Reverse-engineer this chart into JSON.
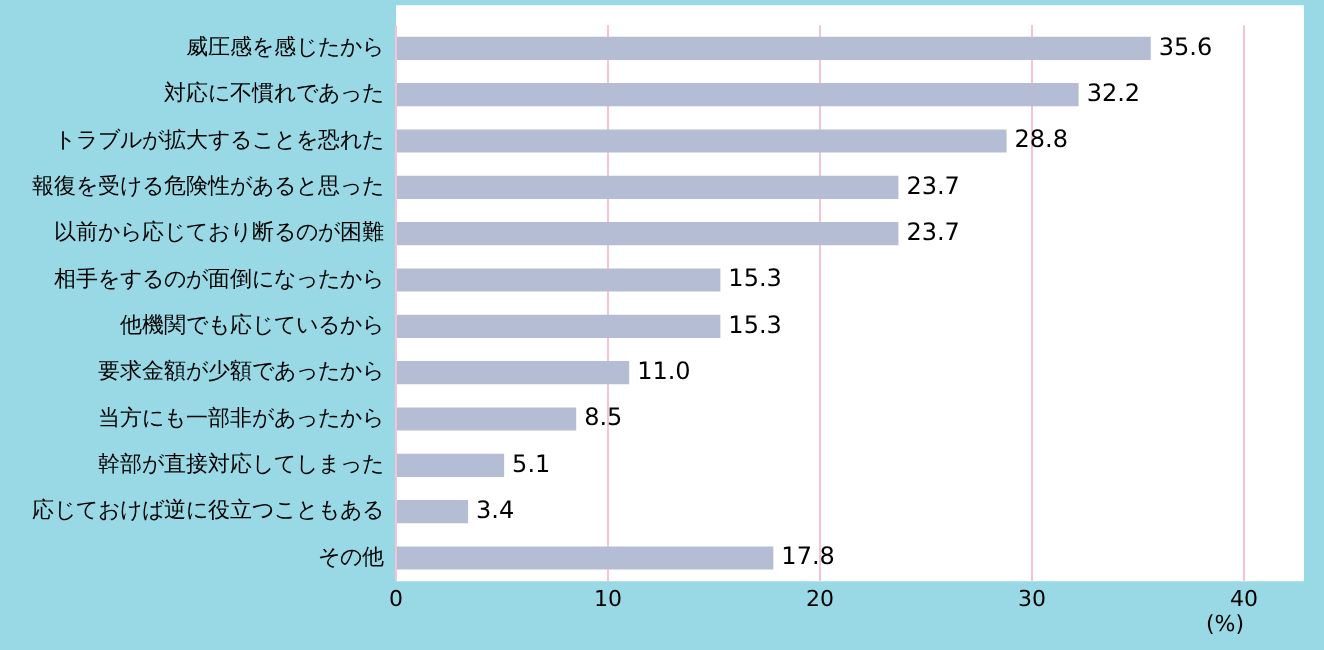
{
  "chart_data": {
    "type": "bar",
    "orientation": "horizontal",
    "categories": [
      "威圧感を感じたから",
      "対応に不慣れであった",
      "トラブルが拡大することを恐れた",
      "報復を受ける危険性があると思った",
      "以前から応じており断るのが困難",
      "相手をするのが面倒になったから",
      "他機関でも応じているから",
      "要求金額が少額であったから",
      "当方にも一部非があったから",
      "幹部が直接対応してしまった",
      "応じておけば逆に役立つこともある",
      "その他"
    ],
    "values": [
      35.6,
      32.2,
      28.8,
      23.7,
      23.7,
      15.3,
      15.3,
      11.0,
      8.5,
      5.1,
      3.4,
      17.8
    ],
    "value_labels": [
      "35.6",
      "32.2",
      "28.8",
      "23.7",
      "23.7",
      "15.3",
      "15.3",
      "11.0",
      "8.5",
      "5.1",
      "3.4",
      "17.8"
    ],
    "color": "#b4bdd3",
    "xlim": [
      0,
      40
    ],
    "xticks": [
      0,
      10,
      20,
      30,
      40
    ],
    "xlabel": "(%)",
    "grid": "x",
    "legend": false
  }
}
